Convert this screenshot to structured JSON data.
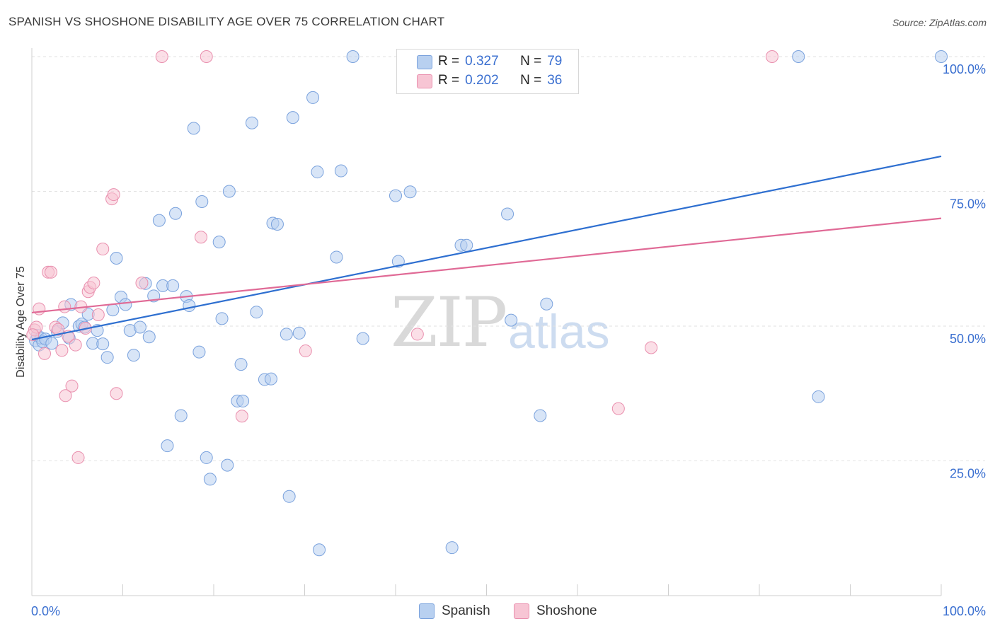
{
  "title": "SPANISH VS SHOSHONE DISABILITY AGE OVER 75 CORRELATION CHART",
  "source": "Source: ZipAtlas.com",
  "watermark": {
    "zip": "ZIP",
    "atlas": "atlas"
  },
  "legend": {
    "r_label": "R =",
    "n_label": "N =",
    "rows": [
      {
        "r": "0.327",
        "n": "79"
      },
      {
        "r": "0.202",
        "n": "36"
      }
    ]
  },
  "bottom_legend": [
    "Spanish",
    "Shoshone"
  ],
  "colors": {
    "spanish_fill": "#b8d0f0",
    "spanish_stroke": "#7aa2dd",
    "spanish_line": "#2e6fd0",
    "shoshone_fill": "#f7c5d4",
    "shoshone_stroke": "#e98fae",
    "shoshone_line": "#e06a96",
    "tick_label": "#3a6fd0",
    "grid": "#e2e2e2"
  },
  "chart_data": {
    "type": "scatter",
    "title": "SPANISH VS SHOSHONE DISABILITY AGE OVER 75 CORRELATION CHART",
    "xlabel": "",
    "ylabel": "Disability Age Over 75",
    "xlim": [
      0,
      100
    ],
    "ylim": [
      0,
      100
    ],
    "x_tick_labels": [
      "0.0%",
      "100.0%"
    ],
    "y_tick_labels": [
      "25.0%",
      "50.0%",
      "75.0%",
      "100.0%"
    ],
    "y_ticks": [
      25,
      50,
      75,
      100
    ],
    "grid": true,
    "legend_position": "top-center",
    "series": [
      {
        "name": "Spanish",
        "r": 0.327,
        "n": 79,
        "trend": {
          "x": [
            0,
            100
          ],
          "y": [
            47.5,
            81.5
          ]
        },
        "points": [
          [
            0.4,
            47.3
          ],
          [
            0.6,
            48.3
          ],
          [
            0.8,
            46.5
          ],
          [
            1.0,
            47.8
          ],
          [
            1.2,
            47.1
          ],
          [
            1.5,
            47.6
          ],
          [
            2.2,
            46.8
          ],
          [
            2.8,
            49.0
          ],
          [
            3.4,
            50.6
          ],
          [
            4.1,
            47.8
          ],
          [
            4.3,
            54.0
          ],
          [
            5.2,
            50.0
          ],
          [
            5.5,
            50.4
          ],
          [
            5.8,
            49.8
          ],
          [
            6.2,
            52.2
          ],
          [
            6.7,
            46.8
          ],
          [
            7.2,
            49.2
          ],
          [
            7.8,
            46.7
          ],
          [
            8.3,
            44.2
          ],
          [
            8.9,
            53.0
          ],
          [
            9.3,
            62.6
          ],
          [
            9.8,
            55.4
          ],
          [
            10.3,
            54.0
          ],
          [
            10.8,
            49.2
          ],
          [
            11.2,
            44.6
          ],
          [
            11.9,
            49.8
          ],
          [
            12.5,
            57.9
          ],
          [
            12.9,
            48.0
          ],
          [
            13.4,
            55.6
          ],
          [
            14.0,
            69.6
          ],
          [
            14.4,
            57.5
          ],
          [
            14.9,
            27.8
          ],
          [
            15.5,
            57.5
          ],
          [
            15.8,
            70.9
          ],
          [
            16.4,
            33.4
          ],
          [
            17.0,
            55.5
          ],
          [
            17.3,
            53.8
          ],
          [
            17.8,
            86.7
          ],
          [
            18.4,
            45.2
          ],
          [
            18.7,
            73.1
          ],
          [
            19.2,
            25.6
          ],
          [
            19.6,
            21.6
          ],
          [
            20.6,
            65.6
          ],
          [
            20.9,
            51.4
          ],
          [
            21.5,
            24.2
          ],
          [
            21.7,
            75.0
          ],
          [
            22.6,
            36.1
          ],
          [
            23.0,
            42.9
          ],
          [
            23.2,
            36.1
          ],
          [
            24.2,
            87.7
          ],
          [
            24.7,
            52.6
          ],
          [
            25.6,
            40.1
          ],
          [
            26.3,
            40.2
          ],
          [
            26.5,
            69.1
          ],
          [
            27.0,
            68.9
          ],
          [
            28.0,
            48.5
          ],
          [
            28.3,
            18.4
          ],
          [
            28.7,
            88.7
          ],
          [
            29.4,
            48.7
          ],
          [
            30.9,
            92.4
          ],
          [
            31.4,
            78.6
          ],
          [
            31.6,
            8.5
          ],
          [
            33.5,
            62.8
          ],
          [
            34.0,
            78.8
          ],
          [
            35.3,
            100.0
          ],
          [
            36.4,
            47.7
          ],
          [
            40.0,
            74.2
          ],
          [
            40.3,
            62.0
          ],
          [
            41.6,
            74.9
          ],
          [
            46.2,
            8.9
          ],
          [
            47.2,
            65.0
          ],
          [
            47.8,
            65.0
          ],
          [
            52.3,
            70.8
          ],
          [
            52.7,
            51.1
          ],
          [
            55.9,
            33.4
          ],
          [
            56.6,
            54.1
          ],
          [
            84.3,
            100.0
          ],
          [
            86.5,
            36.9
          ],
          [
            100.0,
            100.0
          ]
        ]
      },
      {
        "name": "Shoshone",
        "r": 0.202,
        "n": 36,
        "trend": {
          "x": [
            0,
            100
          ],
          "y": [
            52.5,
            70.0
          ]
        },
        "points": [
          [
            0.3,
            49.3
          ],
          [
            0.5,
            49.8
          ],
          [
            0.8,
            53.2
          ],
          [
            1.4,
            44.9
          ],
          [
            1.8,
            60.0
          ],
          [
            2.1,
            60.0
          ],
          [
            2.6,
            49.8
          ],
          [
            2.9,
            49.4
          ],
          [
            3.3,
            45.5
          ],
          [
            3.6,
            53.6
          ],
          [
            3.7,
            37.1
          ],
          [
            4.0,
            48.1
          ],
          [
            4.4,
            38.9
          ],
          [
            4.8,
            46.5
          ],
          [
            5.1,
            25.6
          ],
          [
            5.4,
            53.6
          ],
          [
            5.9,
            49.6
          ],
          [
            6.2,
            56.4
          ],
          [
            6.4,
            57.2
          ],
          [
            6.8,
            58.0
          ],
          [
            7.3,
            52.1
          ],
          [
            7.8,
            64.3
          ],
          [
            8.8,
            73.6
          ],
          [
            9.0,
            74.4
          ],
          [
            9.3,
            37.5
          ],
          [
            12.1,
            58.0
          ],
          [
            14.3,
            100.0
          ],
          [
            18.6,
            66.5
          ],
          [
            19.2,
            100.0
          ],
          [
            23.1,
            33.3
          ],
          [
            30.1,
            45.4
          ],
          [
            42.4,
            48.5
          ],
          [
            64.5,
            34.7
          ],
          [
            68.1,
            46.0
          ],
          [
            81.4,
            100.0
          ],
          [
            0.1,
            48.4
          ]
        ]
      }
    ]
  }
}
